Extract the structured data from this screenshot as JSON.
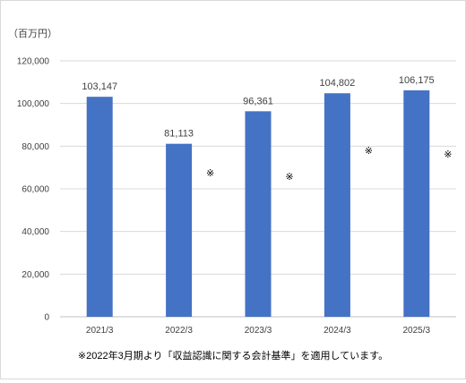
{
  "chart_data": {
    "type": "bar",
    "unit_label": "（百万円）",
    "categories": [
      "2021/3",
      "2022/3",
      "2023/3",
      "2024/3",
      "2025/3"
    ],
    "values": [
      103147,
      81113,
      96361,
      104802,
      106175
    ],
    "value_labels": [
      "103,147",
      "81,113",
      "96,361",
      "104,802",
      "106,175"
    ],
    "ylim": [
      0,
      120000
    ],
    "yticks": [
      0,
      20000,
      40000,
      60000,
      80000,
      100000,
      120000
    ],
    "ytick_labels": [
      "0",
      "20,000",
      "40,000",
      "60,000",
      "80,000",
      "100,000",
      "120,000"
    ],
    "grid": true,
    "legend": "none",
    "asterisk_mark": "※",
    "asterisk_categories": [
      "2022/3",
      "2023/3",
      "2024/3",
      "2025/3"
    ],
    "footnote": "※2022年3月期より「収益認識に関する会計基準」を適用しています。",
    "colors": {
      "bar": "#4472C4",
      "grid": "#d9d9d9",
      "axis": "#bfbfbf"
    }
  }
}
